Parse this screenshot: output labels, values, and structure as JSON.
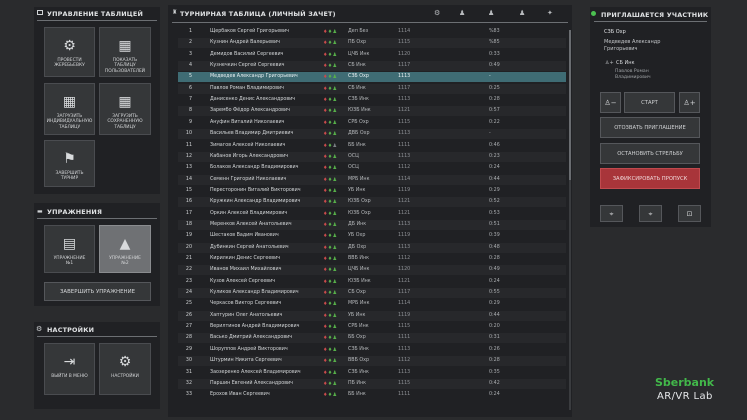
{
  "left": {
    "table_mgmt": {
      "title": "УПРАВЛЕНИЕ ТАБЛИЦЕЙ",
      "tiles": [
        {
          "label": "ПРОВЕСТИ\nЖЕРЕБЬЕВКУ",
          "icon": "gear-icon"
        },
        {
          "label": "ПОКАЗАТЬ\nТАБЛИЦУ\nПОЛЬЗОВАТЕЛЕЙ",
          "icon": "table-icon"
        },
        {
          "label": "ЗАГРУЗИТЬ\nИНДИВИДУАЛЬНУЮ\nТАБЛИЦУ",
          "icon": "table-upload-icon"
        },
        {
          "label": "ЗАГРУЗИТЬ\nСОХРАНЕННУЮ\nТАБЛИЦУ",
          "icon": "table-saved-icon"
        },
        {
          "label": "ЗАВЕРШИТЬ\nТУРНИР",
          "icon": "flag-icon"
        }
      ]
    },
    "exercises": {
      "title": "УПРАЖНЕНИЯ",
      "tiles": [
        {
          "label": "УПРАЖНЕНИЕ\n№1",
          "icon": "exercise-1-icon"
        },
        {
          "label": "УПРАЖНЕНИЕ\n№2",
          "icon": "exercise-2-icon"
        }
      ],
      "finish_label": "ЗАВЕРШИТЬ УПРАЖНЕНИЕ"
    },
    "settings": {
      "title": "НАСТРОЙКИ",
      "tiles": [
        {
          "label": "ВЫЙТИ В МЕНЮ",
          "icon": "exit-icon"
        },
        {
          "label": "НАСТРОЙКИ",
          "icon": "gear-icon"
        }
      ]
    }
  },
  "table": {
    "title": "ТУРНИРНАЯ ТАБЛИЦА (ЛИЧНЫЙ ЗАЧЕТ)",
    "rows": [
      {
        "n": "1",
        "name": "Щербаков Сергей Григорьевич",
        "icons": "gg",
        "sv": "Деп Без",
        "v1": "1114",
        "v2": "%83"
      },
      {
        "n": "2",
        "name": "Кузнин Андрей Валерьевич",
        "icons": "gg",
        "sv": "ПБ Охр",
        "v1": "1115",
        "v2": "%85"
      },
      {
        "n": "3",
        "name": "Демидов Василий Сергеевич",
        "icons": "gg",
        "sv": "ЦЧБ Инк",
        "v1": "1120",
        "v2": "0:33"
      },
      {
        "n": "4",
        "name": "Кузнечкин Сергей Сергеевич",
        "icons": "gg",
        "sv": "СБ Инк",
        "v1": "1117",
        "v2": "0:49"
      },
      {
        "n": "5",
        "name": "Медведев Александр Григорьевич",
        "icons": "gg",
        "sv": "СЗБ Охр",
        "v1": "1113",
        "v2": "-",
        "sel": true
      },
      {
        "n": "6",
        "name": "Павлов Роман Владимирович",
        "icons": "gg",
        "sv": "СБ Инк",
        "v1": "1117",
        "v2": "0:25"
      },
      {
        "n": "7",
        "name": "Данисенко Денис Александрович",
        "icons": "gg",
        "sv": "СЗБ Инк",
        "v1": "1113",
        "v2": "0:28"
      },
      {
        "n": "8",
        "name": "Зарембо Фёдор Александрович",
        "icons": "gg",
        "sv": "ЮЗБ Инк",
        "v1": "1121",
        "v2": "0:57"
      },
      {
        "n": "9",
        "name": "Ануфин Виталий Николаевич",
        "icons": "gg",
        "sv": "СРБ Охр",
        "v1": "1115",
        "v2": "0:22"
      },
      {
        "n": "10",
        "name": "Васильев Владимир Дмитриевич",
        "icons": "gg",
        "sv": "ДВБ Охр",
        "v1": "1113",
        "v2": "-"
      },
      {
        "n": "11",
        "name": "Зимагов Алексей Николаевич",
        "icons": "gx",
        "sv": "ББ Инк",
        "v1": "1111",
        "v2": "0:46"
      },
      {
        "n": "12",
        "name": "Кабанов Игорь Александрович",
        "icons": "gg",
        "sv": "ОСЦ",
        "v1": "1113",
        "v2": "0:23"
      },
      {
        "n": "13",
        "name": "Болаков Александр Владимирович",
        "icons": "gg",
        "sv": "ОСЦ",
        "v1": "1112",
        "v2": "0:24"
      },
      {
        "n": "14",
        "name": "Семенн Григорий Николаевич",
        "icons": "gg",
        "sv": "МРБ Инк",
        "v1": "1114",
        "v2": "0:44"
      },
      {
        "n": "15",
        "name": "Пересторонин Виталий Викторович",
        "icons": "gg",
        "sv": "УБ Инк",
        "v1": "1119",
        "v2": "0:29"
      },
      {
        "n": "16",
        "name": "Кружкин Александр Владимирович",
        "icons": "gg",
        "sv": "ЮЗБ Охр",
        "v1": "1121",
        "v2": "0:52"
      },
      {
        "n": "17",
        "name": "Оркин Алексей Владимирович",
        "icons": "gg",
        "sv": "ЮЗБ Охр",
        "v1": "1121",
        "v2": "0:53"
      },
      {
        "n": "18",
        "name": "Меренков Алексей Анатольевич",
        "icons": "gg",
        "sv": "ДБ Инк",
        "v1": "1113",
        "v2": "0:51"
      },
      {
        "n": "19",
        "name": "Шестаков Вадим Иванович",
        "icons": "gg",
        "sv": "УБ Охр",
        "v1": "1119",
        "v2": "0:39"
      },
      {
        "n": "20",
        "name": "Дубинкин Сергей Анатольевич",
        "icons": "gg",
        "sv": "ДБ Охр",
        "v1": "1113",
        "v2": "0:48"
      },
      {
        "n": "21",
        "name": "Кирилкин Денис Сергеевич",
        "icons": "gg",
        "sv": "ВВБ Инк",
        "v1": "1112",
        "v2": "0:28"
      },
      {
        "n": "22",
        "name": "Иванов Михаил Михайлович",
        "icons": "gg",
        "sv": "ЦЧБ Инк",
        "v1": "1120",
        "v2": "0:49"
      },
      {
        "n": "23",
        "name": "Кузов Алексей Сергеевич",
        "icons": "gg",
        "sv": "ЮЗБ Инк",
        "v1": "1121",
        "v2": "0:24"
      },
      {
        "n": "24",
        "name": "Куликов Александр Владимирович",
        "icons": "gg",
        "sv": "СБ Охр",
        "v1": "1117",
        "v2": "0:55"
      },
      {
        "n": "25",
        "name": "Черкасов Виктор Сергеевич",
        "icons": "gg",
        "sv": "МРБ Инк",
        "v1": "1114",
        "v2": "0:29"
      },
      {
        "n": "26",
        "name": "Хаптурин Олег Анатольевич",
        "icons": "gg",
        "sv": "УБ Инк",
        "v1": "1119",
        "v2": "0:44"
      },
      {
        "n": "27",
        "name": "Верилтинов Андрей Владимирович",
        "icons": "gg",
        "sv": "СРБ Инк",
        "v1": "1115",
        "v2": "0:20"
      },
      {
        "n": "28",
        "name": "Васько Дмитрий Александрович",
        "icons": "gg",
        "sv": "ББ Охр",
        "v1": "1111",
        "v2": "0:31"
      },
      {
        "n": "29",
        "name": "Шоруппов Андрей Викторович",
        "icons": "gg",
        "sv": "СЗБ Инк",
        "v1": "1113",
        "v2": "0:26"
      },
      {
        "n": "30",
        "name": "Штурмин Никита Сергеевич",
        "icons": "gg",
        "sv": "ВВБ Охр",
        "v1": "1112",
        "v2": "0:28"
      },
      {
        "n": "31",
        "name": "Заозеренко Алексей Владимирович",
        "icons": "gg",
        "sv": "СЗБ Инк",
        "v1": "1113",
        "v2": "0:35"
      },
      {
        "n": "32",
        "name": "Паршин Евгений Александрович",
        "icons": "gg",
        "sv": "ПБ Инк",
        "v1": "1115",
        "v2": "0:42"
      },
      {
        "n": "33",
        "name": "Ерохов Иван Сергеевич",
        "icons": "gg",
        "sv": "ББ Инк",
        "v1": "1111",
        "v2": "0:24"
      }
    ]
  },
  "right": {
    "title": "ПРИГЛАШАЕТСЯ УЧАСТНИК",
    "p1": {
      "unit": "СЗБ Охр",
      "name": "Медведев Александр Григорьевич"
    },
    "p2": {
      "unit": "СБ Инк",
      "name": "Павлов Роман Владимирович"
    },
    "start_label": "СТАРТ",
    "recall_label": "ОТОЗВАТЬ ПРИГЛАШЕНИЕ",
    "stop_label": "ОСТАНОВИТЬ СТРЕЛЬБУ",
    "miss_label": "ЗАФИКСИРОВАТЬ ПРОПУСК"
  },
  "brand": {
    "line1": "Sberbank",
    "line2": "AR/VR Lab"
  }
}
